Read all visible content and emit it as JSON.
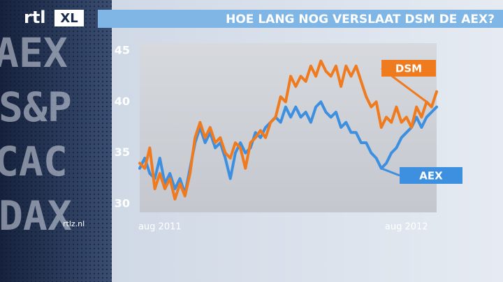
{
  "brand": {
    "logo": "rtl",
    "logo_badge": "XL",
    "watermark": "rtlz.nl"
  },
  "backdrop": {
    "tickers": [
      "AEX",
      "S&P",
      "CAC",
      "DAX"
    ]
  },
  "chart_data": {
    "type": "line",
    "title": "HOE LANG NOG VERSLAAT DSM DE AEX?",
    "categories": [
      null,
      null,
      null,
      null,
      "aug 2011",
      null,
      null,
      null,
      null,
      null,
      null,
      null,
      null,
      null,
      null,
      null,
      null,
      null,
      null,
      null,
      null,
      null,
      null,
      null,
      null,
      null,
      null,
      null,
      null,
      null,
      null,
      null,
      null,
      null,
      null,
      null,
      null,
      null,
      null,
      null,
      null,
      null,
      null,
      null,
      null,
      null,
      null,
      null,
      null,
      null,
      null,
      null,
      null,
      "aug 2012",
      null,
      null,
      null,
      null,
      null,
      null
    ],
    "series": [
      {
        "name": "DSM",
        "color": "#f07a1e",
        "values": [
          34,
          33.5,
          35.5,
          31.5,
          33,
          31.5,
          32.5,
          30.5,
          32,
          30.8,
          33,
          36.5,
          38,
          36.5,
          37.5,
          36,
          36.5,
          35,
          34.5,
          36,
          35.5,
          33.5,
          36,
          36.5,
          37.2,
          36.5,
          38,
          38.5,
          40.5,
          40,
          42.5,
          41.5,
          42.5,
          42,
          43.5,
          42.5,
          44,
          43,
          42.5,
          43.5,
          41.5,
          43.5,
          42.5,
          43.5,
          42,
          40.5,
          39.5,
          40,
          37.5,
          38.5,
          38,
          39.5,
          38,
          38.5,
          37.5,
          39.5,
          38.5,
          40,
          39.5,
          41
        ]
      },
      {
        "name": "AEX",
        "color": "#3d8fe0",
        "values": [
          33.5,
          34.5,
          33,
          32.5,
          34.5,
          32,
          33,
          31.5,
          32.5,
          31,
          33.5,
          36,
          37.5,
          36,
          37,
          35.5,
          36,
          34.5,
          32.5,
          35,
          36,
          35,
          35.5,
          37,
          36.5,
          37.5,
          38,
          38.5,
          38,
          39.5,
          38.5,
          39.5,
          38.5,
          39,
          38,
          39.5,
          40,
          39,
          38.5,
          39,
          37.5,
          38,
          37,
          37,
          36,
          36,
          35,
          34.5,
          33.5,
          34,
          35,
          35.5,
          36.5,
          37,
          37.5,
          38.5,
          37.5,
          38.5,
          39,
          39.5
        ]
      }
    ],
    "ylim": [
      29.2,
      45.8
    ],
    "yticks": [
      30,
      35,
      40,
      45
    ],
    "grid": false
  }
}
